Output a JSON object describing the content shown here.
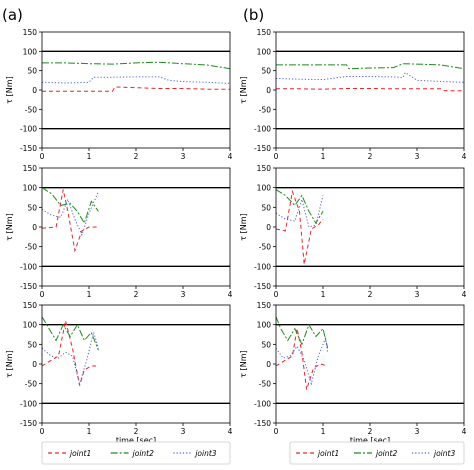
{
  "panels": [
    {
      "label": "(a)"
    },
    {
      "label": "(b)"
    }
  ],
  "xlabel": "time [sec]",
  "ylabel": "τ [Nm]",
  "colors": {
    "joint1": "#e8262b",
    "joint2": "#1f8a1f",
    "joint3": "#4c5ee0",
    "limit_line": "#000000",
    "frame": "#000000"
  },
  "legends": [
    {
      "entries": [
        "joint1",
        "joint2",
        "joint3"
      ]
    },
    {
      "entries": [
        "joint1",
        "joint2",
        "joint3"
      ]
    }
  ],
  "chart_data": [
    {
      "type": "line",
      "panel": "(a)",
      "row": 1,
      "xlim": [
        0,
        4
      ],
      "ylim": [
        -150,
        150
      ],
      "xticks": [
        0,
        1,
        2,
        3,
        4
      ],
      "yticks": [
        -150,
        -100,
        -50,
        0,
        50,
        100,
        150
      ],
      "hlines": [
        100,
        -100
      ],
      "xlabel": "",
      "ylabel": "τ [Nm]",
      "series": [
        {
          "name": "joint1",
          "style": "dashed",
          "x": [
            0,
            0.5,
            1.0,
            1.5,
            1.55,
            2.0,
            2.5,
            3.0,
            3.5,
            4.0
          ],
          "y": [
            -3,
            -3,
            -3,
            -3,
            8,
            6,
            4,
            4,
            2,
            2
          ]
        },
        {
          "name": "joint2",
          "style": "dashdot",
          "x": [
            0,
            0.5,
            1.0,
            1.5,
            2.0,
            2.5,
            3.0,
            3.5,
            4.0
          ],
          "y": [
            70,
            70,
            68,
            67,
            70,
            72,
            68,
            65,
            55
          ]
        },
        {
          "name": "joint3",
          "style": "dotted",
          "x": [
            0,
            0.5,
            1.0,
            1.1,
            1.5,
            2.0,
            2.5,
            2.7,
            3.0,
            3.5,
            4.0
          ],
          "y": [
            20,
            18,
            20,
            33,
            33,
            34,
            34,
            25,
            22,
            20,
            17
          ]
        }
      ]
    },
    {
      "type": "line",
      "panel": "(a)",
      "row": 2,
      "xlim": [
        0,
        4
      ],
      "ylim": [
        -150,
        150
      ],
      "xticks": [
        0,
        1,
        2,
        3,
        4
      ],
      "yticks": [
        -150,
        -100,
        -50,
        0,
        50,
        100,
        150
      ],
      "hlines": [
        100,
        -100
      ],
      "xlabel": "",
      "ylabel": "τ [Nm]",
      "series": [
        {
          "name": "joint1",
          "style": "dashed",
          "x": [
            0,
            0.3,
            0.45,
            0.55,
            0.7,
            0.85,
            1.0,
            1.2
          ],
          "y": [
            -3,
            0,
            95,
            40,
            -60,
            -10,
            0,
            0
          ]
        },
        {
          "name": "joint2",
          "style": "dashdot",
          "x": [
            0,
            0.2,
            0.4,
            0.6,
            0.75,
            0.9,
            1.05,
            1.2
          ],
          "y": [
            100,
            85,
            55,
            60,
            40,
            10,
            65,
            40
          ]
        },
        {
          "name": "joint3",
          "style": "dotted",
          "x": [
            0,
            0.2,
            0.4,
            0.55,
            0.7,
            0.85,
            1.0,
            1.2
          ],
          "y": [
            45,
            30,
            25,
            70,
            20,
            -20,
            35,
            90
          ]
        }
      ]
    },
    {
      "type": "line",
      "panel": "(a)",
      "row": 3,
      "xlim": [
        0,
        4
      ],
      "ylim": [
        -150,
        150
      ],
      "xticks": [
        0,
        1,
        2,
        3,
        4
      ],
      "yticks": [
        -150,
        -100,
        -50,
        0,
        50,
        100,
        150
      ],
      "hlines": [
        100,
        -100
      ],
      "xlabel": "time [sec]",
      "ylabel": "τ [Nm]",
      "series": [
        {
          "name": "joint1",
          "style": "dashed",
          "x": [
            0,
            0.2,
            0.35,
            0.5,
            0.65,
            0.8,
            0.9,
            1.05,
            1.2
          ],
          "y": [
            -5,
            10,
            20,
            110,
            40,
            -55,
            -15,
            -5,
            -5
          ]
        },
        {
          "name": "joint2",
          "style": "dashdot",
          "x": [
            0,
            0.1,
            0.3,
            0.45,
            0.6,
            0.75,
            0.9,
            1.05,
            1.2
          ],
          "y": [
            120,
            100,
            60,
            100,
            70,
            100,
            60,
            80,
            35
          ]
        },
        {
          "name": "joint3",
          "style": "dotted",
          "x": [
            0,
            0.2,
            0.35,
            0.5,
            0.65,
            0.8,
            0.95,
            1.1,
            1.2
          ],
          "y": [
            40,
            20,
            15,
            30,
            20,
            -50,
            10,
            80,
            40
          ]
        }
      ]
    },
    {
      "type": "line",
      "panel": "(b)",
      "row": 1,
      "xlim": [
        0,
        4
      ],
      "ylim": [
        -150,
        150
      ],
      "xticks": [
        0,
        1,
        2,
        3,
        4
      ],
      "yticks": [
        -150,
        -100,
        -50,
        0,
        50,
        100,
        150
      ],
      "hlines": [
        100,
        -100
      ],
      "xlabel": "",
      "ylabel": "τ [Nm]",
      "series": [
        {
          "name": "joint1",
          "style": "dashed",
          "x": [
            0,
            0.5,
            1.0,
            1.5,
            2.0,
            2.5,
            3.0,
            3.5,
            3.6,
            4.0
          ],
          "y": [
            3,
            3,
            2,
            4,
            4,
            3,
            3,
            3,
            -2,
            -2
          ]
        },
        {
          "name": "joint2",
          "style": "dashdot",
          "x": [
            0,
            0.5,
            1.0,
            1.5,
            1.55,
            2.0,
            2.5,
            2.7,
            3.0,
            3.5,
            4.0
          ],
          "y": [
            65,
            65,
            65,
            65,
            55,
            57,
            58,
            68,
            67,
            65,
            55
          ]
        },
        {
          "name": "joint3",
          "style": "dotted",
          "x": [
            0,
            0.5,
            1.0,
            1.5,
            2.0,
            2.5,
            2.7,
            2.75,
            3.0,
            3.5,
            4.0
          ],
          "y": [
            30,
            28,
            27,
            35,
            35,
            34,
            32,
            45,
            25,
            22,
            20
          ]
        }
      ]
    },
    {
      "type": "line",
      "panel": "(b)",
      "row": 2,
      "xlim": [
        0,
        4
      ],
      "ylim": [
        -150,
        150
      ],
      "xticks": [
        0,
        1,
        2,
        3,
        4
      ],
      "yticks": [
        -150,
        -100,
        -50,
        0,
        50,
        100,
        150
      ],
      "hlines": [
        100,
        -100
      ],
      "xlabel": "",
      "ylabel": "τ [Nm]",
      "series": [
        {
          "name": "joint1",
          "style": "dashed",
          "x": [
            0,
            0.2,
            0.35,
            0.5,
            0.6,
            0.75,
            0.9,
            1.0
          ],
          "y": [
            -5,
            -10,
            90,
            40,
            -95,
            -5,
            5,
            20
          ]
        },
        {
          "name": "joint2",
          "style": "dashdot",
          "x": [
            0,
            0.2,
            0.4,
            0.55,
            0.7,
            0.85,
            1.0
          ],
          "y": [
            95,
            80,
            55,
            80,
            40,
            10,
            40
          ]
        },
        {
          "name": "joint3",
          "style": "dotted",
          "x": [
            0,
            0.2,
            0.4,
            0.55,
            0.7,
            0.85,
            1.0
          ],
          "y": [
            35,
            20,
            15,
            70,
            0,
            5,
            80
          ]
        }
      ]
    },
    {
      "type": "line",
      "panel": "(b)",
      "row": 3,
      "xlim": [
        0,
        4
      ],
      "ylim": [
        -150,
        150
      ],
      "xticks": [
        0,
        1,
        2,
        3,
        4
      ],
      "yticks": [
        -150,
        -100,
        -50,
        0,
        50,
        100,
        150
      ],
      "hlines": [
        100,
        -100
      ],
      "xlabel": "time [sec]",
      "ylabel": "τ [Nm]",
      "series": [
        {
          "name": "joint1",
          "style": "dashed",
          "x": [
            0,
            0.2,
            0.35,
            0.45,
            0.55,
            0.65,
            0.8,
            0.95,
            1.1
          ],
          "y": [
            -5,
            10,
            20,
            90,
            30,
            -65,
            -10,
            0,
            -5
          ]
        },
        {
          "name": "joint2",
          "style": "dashdot",
          "x": [
            0,
            0.1,
            0.25,
            0.4,
            0.55,
            0.7,
            0.85,
            1.0,
            1.1
          ],
          "y": [
            120,
            90,
            60,
            90,
            50,
            100,
            70,
            90,
            40
          ]
        },
        {
          "name": "joint3",
          "style": "dotted",
          "x": [
            0,
            0.15,
            0.3,
            0.45,
            0.6,
            0.75,
            0.9,
            1.05,
            1.1
          ],
          "y": [
            40,
            15,
            20,
            45,
            10,
            -50,
            20,
            65,
            30
          ]
        }
      ]
    }
  ]
}
